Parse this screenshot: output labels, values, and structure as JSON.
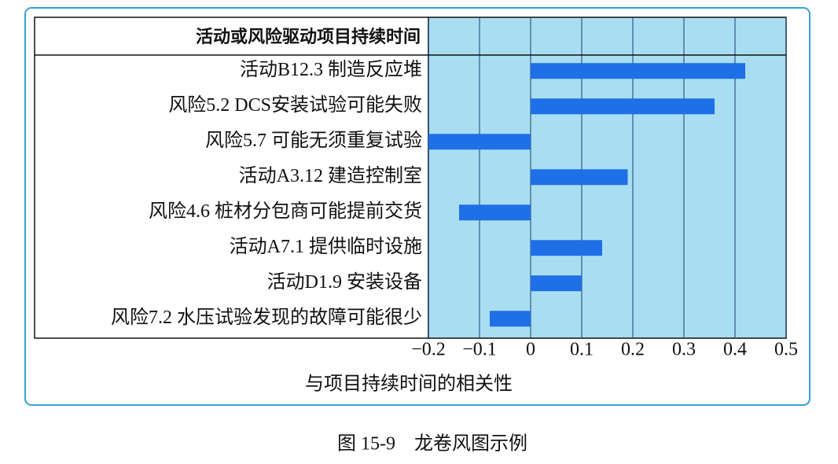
{
  "chart_data": {
    "type": "bar",
    "orientation": "horizontal",
    "y_label": "活动或风险驱动项目持续时间",
    "x_label": "与项目持续时间的相关性",
    "caption": "图 15-9　龙卷风图示例",
    "categories": [
      "活动B12.3 制造反应堆",
      "风险5.2  DCS安装试验可能失败",
      "风险5.7 可能无须重复试验",
      "活动A3.12 建造控制室",
      "风险4.6 桩材分包商可能提前交货",
      "活动A7.1 提供临时设施",
      "活动D1.9 安装设备",
      "风险7.2 水压试验发现的故障可能很少"
    ],
    "values": [
      0.42,
      0.36,
      -0.2,
      0.19,
      -0.14,
      0.14,
      0.1,
      -0.08
    ],
    "color": "#1f6fe6",
    "background": "#a9def2",
    "xlim": [
      -0.2,
      0.5
    ],
    "xticks": [
      {
        "value": -0.2,
        "label": "−0.2"
      },
      {
        "value": -0.1,
        "label": "−0.1"
      },
      0,
      0.1,
      0.2,
      0.3,
      0.4,
      0.5
    ],
    "grid": true
  }
}
